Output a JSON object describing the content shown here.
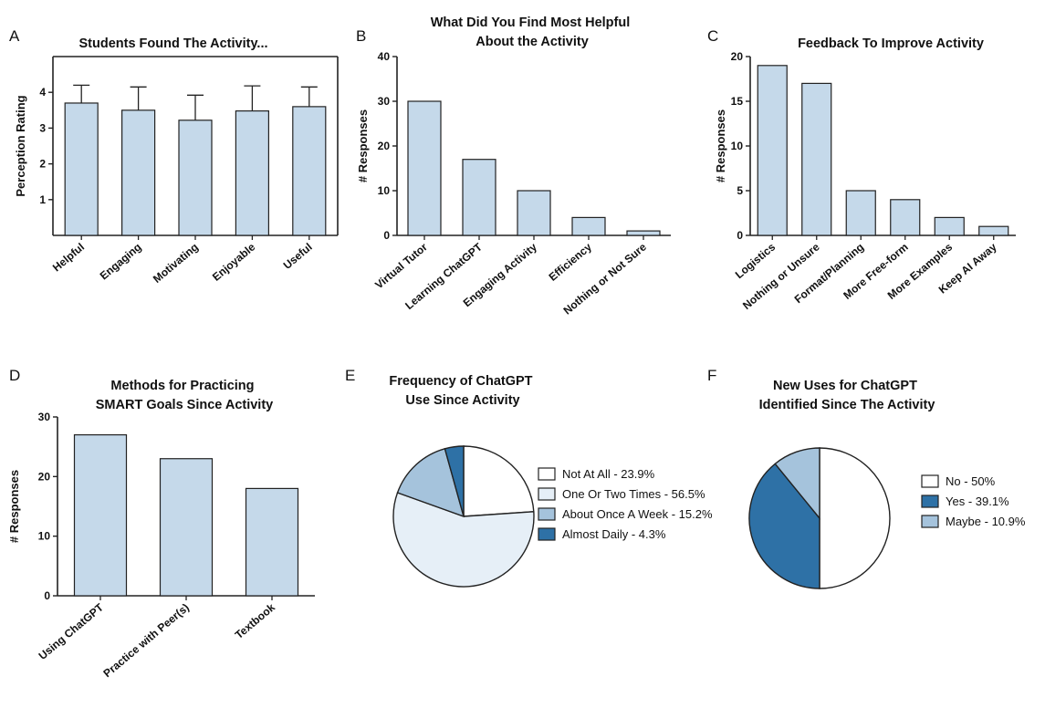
{
  "panels": {
    "A": {
      "letter": "A",
      "chart_data": {
        "type": "bar",
        "title": "Students Found The Activity...",
        "xlabel": "",
        "ylabel": "Perception Rating",
        "categories": [
          "Helpful",
          "Engaging",
          "Motivating",
          "Enjoyable",
          "Useful"
        ],
        "values": [
          3.7,
          3.5,
          3.22,
          3.48,
          3.6
        ],
        "error_upper": [
          4.2,
          4.15,
          3.92,
          4.18,
          4.15
        ],
        "ylim": [
          0,
          5
        ],
        "yticks": [
          1,
          2,
          3,
          4
        ],
        "grid": false,
        "error_bars": true
      }
    },
    "B": {
      "letter": "B",
      "chart_data": {
        "type": "bar",
        "title": "What Did You Find Most Helpful About the Activity",
        "xlabel": "",
        "ylabel": "# Responses",
        "categories": [
          "Virtual Tutor",
          "Learning ChatGPT",
          "Engaging Activity",
          "Efficiency",
          "Nothing or Not Sure"
        ],
        "values": [
          30,
          17,
          10,
          4,
          1
        ],
        "ylim": [
          0,
          40
        ],
        "yticks": [
          0,
          10,
          20,
          30,
          40
        ],
        "grid": false
      }
    },
    "C": {
      "letter": "C",
      "chart_data": {
        "type": "bar",
        "title": "Feedback To Improve Activity",
        "xlabel": "",
        "ylabel": "# Responses",
        "categories": [
          "Logistics",
          "Nothing or Unsure",
          "Format/Planning",
          "More Free-form",
          "More Examples",
          "Keep AI Away"
        ],
        "values": [
          19,
          17,
          5,
          4,
          2,
          1
        ],
        "ylim": [
          0,
          20
        ],
        "yticks": [
          0,
          5,
          10,
          15,
          20
        ],
        "grid": false
      }
    },
    "D": {
      "letter": "D",
      "chart_data": {
        "type": "bar",
        "title": "Methods for Practicing SMART Goals Since Activity",
        "xlabel": "",
        "ylabel": "# Responses",
        "categories": [
          "Using ChatGPT",
          "Practice with Peer(s)",
          "Textbook"
        ],
        "values": [
          27,
          23,
          18
        ],
        "ylim": [
          0,
          30
        ],
        "yticks": [
          0,
          10,
          20,
          30
        ],
        "grid": false
      }
    },
    "E": {
      "letter": "E",
      "chart_data": {
        "type": "pie",
        "title": "Frequency of ChatGPT Use Since Activity",
        "labels": [
          "Not At All - 23.9%",
          "One Or Two Times - 56.5%",
          "About Once A Week - 15.2%",
          "Almost Daily - 4.3%"
        ],
        "values": [
          23.9,
          56.5,
          15.2,
          4.3
        ],
        "colors": [
          "#ffffff",
          "#e6eff7",
          "#a5c3dc",
          "#2e71a6"
        ],
        "legend": "right"
      }
    },
    "F": {
      "letter": "F",
      "chart_data": {
        "type": "pie",
        "title": "New Uses for ChatGPT Identified Since The Activity",
        "labels": [
          "No - 50%",
          "Yes - 39.1%",
          "Maybe - 10.9%"
        ],
        "values": [
          50,
          39.1,
          10.9
        ],
        "colors": [
          "#ffffff",
          "#2e71a6",
          "#a5c3dc"
        ],
        "legend": "right"
      }
    }
  },
  "colors": {
    "bar_fill": "#c5d9ea",
    "stroke": "#222222"
  }
}
